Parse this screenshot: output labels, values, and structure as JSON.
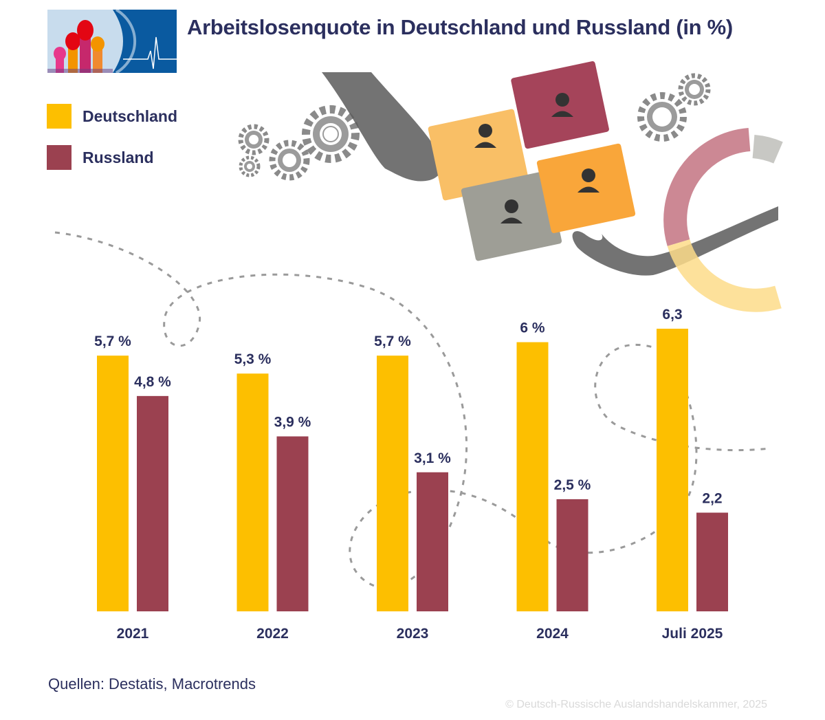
{
  "title": "Arbeitslosenquote in Deutschland und Russland (in %)",
  "legend": [
    {
      "label": "Deutschland",
      "color": "#fdbf00"
    },
    {
      "label": "Russland",
      "color": "#9b4150"
    }
  ],
  "chart_data": {
    "type": "bar",
    "title": "Arbeitslosenquote in Deutschland und Russland (in %)",
    "categories": [
      "2021",
      "2022",
      "2023",
      "2024",
      "Juli 2025"
    ],
    "series": [
      {
        "name": "Deutschland",
        "color": "#fdbf00",
        "values": [
          5.7,
          5.3,
          5.7,
          6.0,
          6.3
        ],
        "labels": [
          "5,7 %",
          "5,3 %",
          "5,7 %",
          "6 %",
          "6,3"
        ]
      },
      {
        "name": "Russland",
        "color": "#9b4150",
        "values": [
          4.8,
          3.9,
          3.1,
          2.5,
          2.2
        ],
        "labels": [
          "4,8 %",
          "3,9 %",
          "3,1 %",
          "2,5 %",
          "2,2"
        ]
      }
    ],
    "ylim": [
      0,
      6.3
    ],
    "grid": false,
    "legend_position": "top-left"
  },
  "sources": "Quellen: Destatis, Macrotrends",
  "copyright": "© Deutsch-Russische Auslandshandelskammer, 2025"
}
